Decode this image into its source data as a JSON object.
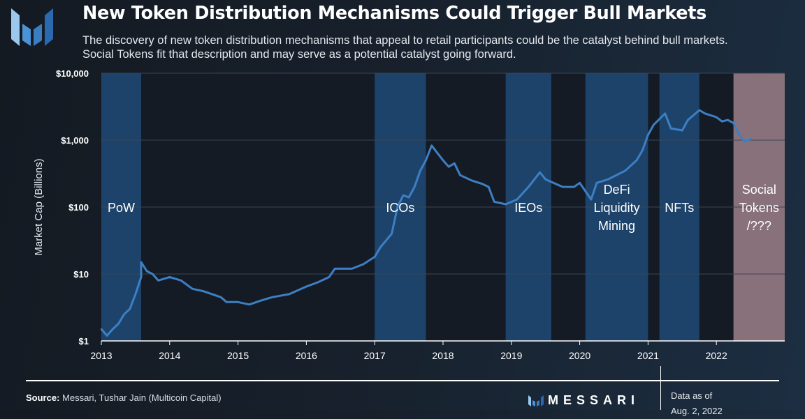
{
  "header": {
    "title": "New Token Distribution Mechanisms Could Trigger Bull Markets",
    "subtitle_line1": "The discovery of new token distribution mechanisms that appeal to retail participants could be the catalyst behind bull markets.",
    "subtitle_line2": "Social Tokens fit that description and may serve as a potential catalyst going forward."
  },
  "footer": {
    "source_label": "Source:",
    "source_text": "Messari, Tushar Jain (Multicoin Capital)",
    "brand": "MESSARI",
    "data_as_of_label": "Data as of",
    "data_as_of_date": "Aug. 2, 2022"
  },
  "colors": {
    "line": "#3d7fc4",
    "band": "#1f4a78",
    "social_band": "#8e7680",
    "grid": "#3a4656"
  },
  "chart_data": {
    "type": "line",
    "title": "",
    "xlabel": "",
    "ylabel": "Market Cap (Billions)",
    "yscale": "log",
    "ylim": [
      1,
      10000
    ],
    "xlim": [
      "2013-01",
      "2023-01"
    ],
    "grid": true,
    "y_ticks": [
      {
        "v": 10000,
        "label": "$10,000"
      },
      {
        "v": 1000,
        "label": "$1,000"
      },
      {
        "v": 100,
        "label": "$100"
      },
      {
        "v": 10,
        "label": "$10"
      },
      {
        "v": 1,
        "label": "$1"
      }
    ],
    "x_ticks": [
      "2013",
      "2014",
      "2015",
      "2016",
      "2017",
      "2018",
      "2019",
      "2020",
      "2021",
      "2022"
    ],
    "periods": [
      {
        "label": [
          "PoW"
        ],
        "start": "2013-01",
        "end": "2013-08"
      },
      {
        "label": [
          "ICOs"
        ],
        "start": "2017-01",
        "end": "2017-10"
      },
      {
        "label": [
          "IEOs"
        ],
        "start": "2018-12",
        "end": "2019-08"
      },
      {
        "label": [
          "DeFi",
          "Liquidity",
          "Mining"
        ],
        "start": "2020-02",
        "end": "2021-01"
      },
      {
        "label": [
          "NFTs"
        ],
        "start": "2021-03",
        "end": "2021-10"
      },
      {
        "label": [
          "Social",
          "Tokens",
          "/???"
        ],
        "start": "2022-04",
        "end": "2023-01",
        "highlight": true
      }
    ],
    "series": [
      {
        "points": [
          [
            "2013-01",
            1.5
          ],
          [
            "2013-02",
            1.2
          ],
          [
            "2013-03",
            1.5
          ],
          [
            "2013-04",
            1.8
          ],
          [
            "2013-05",
            2.5
          ],
          [
            "2013-06",
            3
          ],
          [
            "2013-07",
            5
          ],
          [
            "2013-08",
            9
          ],
          [
            "2013-08",
            15
          ],
          [
            "2013-09",
            11
          ],
          [
            "2013-10",
            10
          ],
          [
            "2013-11",
            8
          ],
          [
            "2014-01",
            9
          ],
          [
            "2014-03",
            8
          ],
          [
            "2014-05",
            6
          ],
          [
            "2014-07",
            5.5
          ],
          [
            "2014-10",
            4.5
          ],
          [
            "2014-11",
            3.8
          ],
          [
            "2015-01",
            3.8
          ],
          [
            "2015-03",
            3.5
          ],
          [
            "2015-05",
            4
          ],
          [
            "2015-07",
            4.5
          ],
          [
            "2015-10",
            5
          ],
          [
            "2016-01",
            6.5
          ],
          [
            "2016-03",
            7.5
          ],
          [
            "2016-05",
            9
          ],
          [
            "2016-06",
            12
          ],
          [
            "2016-09",
            12
          ],
          [
            "2016-11",
            14
          ],
          [
            "2017-01",
            18
          ],
          [
            "2017-02",
            25
          ],
          [
            "2017-04",
            40
          ],
          [
            "2017-05",
            100
          ],
          [
            "2017-06",
            150
          ],
          [
            "2017-07",
            140
          ],
          [
            "2017-08",
            200
          ],
          [
            "2017-09",
            350
          ],
          [
            "2017-10",
            500
          ],
          [
            "2017-11",
            830
          ],
          [
            "2018-01",
            500
          ],
          [
            "2018-02",
            400
          ],
          [
            "2018-03",
            450
          ],
          [
            "2018-04",
            300
          ],
          [
            "2018-06",
            250
          ],
          [
            "2018-08",
            220
          ],
          [
            "2018-09",
            200
          ],
          [
            "2018-10",
            120
          ],
          [
            "2018-12",
            110
          ],
          [
            "2019-02",
            130
          ],
          [
            "2019-04",
            200
          ],
          [
            "2019-06",
            330
          ],
          [
            "2019-07",
            260
          ],
          [
            "2019-10",
            200
          ],
          [
            "2019-12",
            200
          ],
          [
            "2020-01",
            230
          ],
          [
            "2020-03",
            130
          ],
          [
            "2020-04",
            230
          ],
          [
            "2020-06",
            260
          ],
          [
            "2020-09",
            350
          ],
          [
            "2020-11",
            500
          ],
          [
            "2020-12",
            700
          ],
          [
            "2021-01",
            1200
          ],
          [
            "2021-02",
            1700
          ],
          [
            "2021-04",
            2500
          ],
          [
            "2021-05",
            1500
          ],
          [
            "2021-07",
            1400
          ],
          [
            "2021-08",
            2000
          ],
          [
            "2021-10",
            2800
          ],
          [
            "2021-11",
            2500
          ],
          [
            "2022-01",
            2200
          ],
          [
            "2022-02",
            1900
          ],
          [
            "2022-03",
            2000
          ],
          [
            "2022-04",
            1800
          ],
          [
            "2022-05",
            1200
          ],
          [
            "2022-06",
            950
          ],
          [
            "2022-07",
            1050
          ]
        ]
      }
    ]
  }
}
